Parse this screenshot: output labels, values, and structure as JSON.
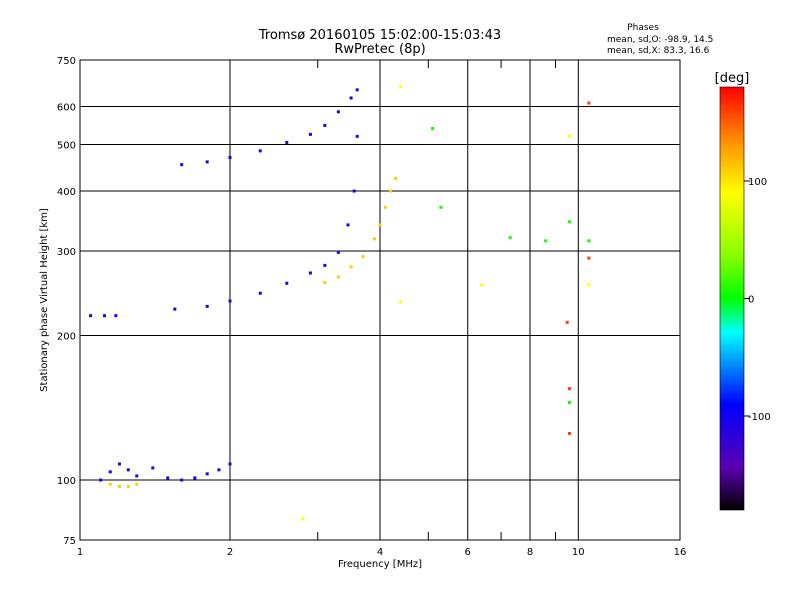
{
  "chart_data": {
    "type": "scatter",
    "title": "Tromsø 20160105 15:02:00-15:03:43",
    "subtitle": "RwPretec (8p)",
    "xlabel": "Frequency [MHz]",
    "ylabel": "Stationary phase Virtual Height [km]",
    "x_scale": "log2",
    "y_scale": "log",
    "xlim": [
      1,
      16
    ],
    "ylim": [
      75,
      750
    ],
    "grid": true,
    "x_ticks": [
      1,
      2,
      4,
      6,
      8,
      10,
      16
    ],
    "x_tick_labels": [
      "1",
      "2",
      "4",
      "6",
      "8",
      "10",
      "16"
    ],
    "x_minor_ticks": [
      3,
      5,
      7,
      9
    ],
    "y_ticks": [
      75,
      100,
      200,
      300,
      400,
      500,
      600,
      750
    ],
    "y_tick_labels": [
      "75",
      "100",
      "200",
      "300",
      "400",
      "500",
      "600",
      "750"
    ],
    "stats": {
      "heading": "Phases",
      "line_o": "mean, sd,O: -98.9, 14.5",
      "line_x": "mean, sd,X:  83.3, 16.6"
    },
    "colorbar": {
      "label": "[deg]",
      "range": [
        -180,
        180
      ],
      "ticks": [
        100,
        0,
        -100
      ],
      "tick_labels": [
        "100",
        "0",
        "-100"
      ]
    },
    "traces": [
      {
        "name": "",
        "phase": -110,
        "points": [
          [
            1.1,
            100
          ],
          [
            1.15,
            104
          ],
          [
            1.2,
            108
          ],
          [
            1.25,
            105
          ],
          [
            1.3,
            102
          ],
          [
            1.4,
            106
          ],
          [
            1.5,
            101
          ],
          [
            1.6,
            100
          ],
          [
            1.7,
            101
          ],
          [
            1.8,
            103
          ],
          [
            1.9,
            105
          ],
          [
            2.0,
            108
          ]
        ]
      },
      {
        "name": "",
        "phase": 110,
        "points": [
          [
            1.15,
            98
          ],
          [
            1.2,
            97
          ],
          [
            1.25,
            97
          ],
          [
            1.3,
            98
          ]
        ]
      },
      {
        "name": "",
        "phase": -110,
        "points": [
          [
            1.6,
            454
          ],
          [
            1.8,
            460
          ],
          [
            2.0,
            470
          ],
          [
            2.3,
            485
          ],
          [
            2.6,
            505
          ],
          [
            2.9,
            525
          ],
          [
            3.1,
            548
          ],
          [
            3.3,
            585
          ],
          [
            3.5,
            625
          ],
          [
            3.6,
            650
          ]
        ]
      },
      {
        "name": "",
        "phase": -110,
        "points": [
          [
            1.55,
            227
          ],
          [
            1.8,
            230
          ],
          [
            2.0,
            236
          ],
          [
            2.3,
            245
          ],
          [
            2.6,
            257
          ],
          [
            2.9,
            270
          ],
          [
            3.1,
            280
          ],
          [
            3.3,
            298
          ],
          [
            3.45,
            340
          ],
          [
            3.55,
            400
          ],
          [
            3.6,
            520
          ]
        ]
      },
      {
        "name": "",
        "phase": 110,
        "points": [
          [
            3.1,
            258
          ],
          [
            3.3,
            265
          ],
          [
            3.5,
            278
          ],
          [
            3.7,
            292
          ],
          [
            3.9,
            318
          ],
          [
            4.0,
            340
          ],
          [
            4.1,
            370
          ],
          [
            4.2,
            400
          ],
          [
            4.3,
            425
          ]
        ]
      },
      {
        "name": "",
        "phase": -110,
        "points": [
          [
            1.05,
            220
          ],
          [
            1.12,
            220
          ],
          [
            1.18,
            220
          ]
        ]
      },
      {
        "name": "",
        "phase": 5,
        "points": [
          [
            5.1,
            540
          ],
          [
            5.3,
            370
          ],
          [
            7.3,
            320
          ],
          [
            8.6,
            315
          ],
          [
            10.5,
            315
          ],
          [
            9.6,
            145
          ],
          [
            9.6,
            345
          ]
        ]
      },
      {
        "name": "",
        "phase": 160,
        "points": [
          [
            9.5,
            213
          ],
          [
            9.6,
            155
          ],
          [
            9.6,
            125
          ],
          [
            10.5,
            290
          ],
          [
            10.5,
            610
          ]
        ]
      },
      {
        "name": "",
        "phase": 90,
        "points": [
          [
            4.4,
            660
          ],
          [
            4.4,
            235
          ],
          [
            6.4,
            255
          ],
          [
            9.6,
            520
          ],
          [
            10.5,
            255
          ],
          [
            2.8,
            83
          ]
        ]
      }
    ]
  }
}
